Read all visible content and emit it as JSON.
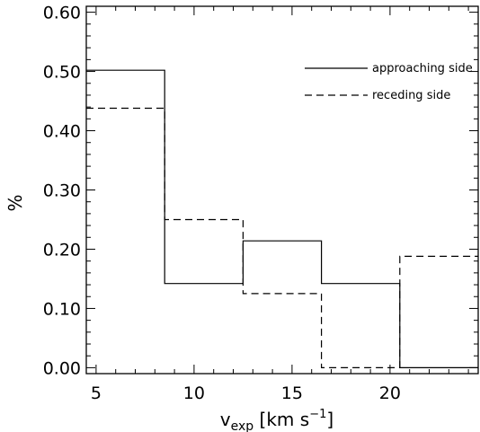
{
  "chart_data": {
    "type": "line",
    "step": true,
    "title": "",
    "xlabel": {
      "base": "v",
      "subscript": "exp",
      "unit_open": " [km s",
      "unit_sup": "−1",
      "unit_close": "]"
    },
    "ylabel": "%",
    "xlim": [
      4.5,
      24.5
    ],
    "ylim": [
      -0.01,
      0.61
    ],
    "xticks": [
      {
        "value": 5,
        "label": "5"
      },
      {
        "value": 10,
        "label": "10"
      },
      {
        "value": 15,
        "label": "15"
      },
      {
        "value": 20,
        "label": "20"
      }
    ],
    "yticks": [
      {
        "value": 0.0,
        "label": "0.00"
      },
      {
        "value": 0.1,
        "label": "0.10"
      },
      {
        "value": 0.2,
        "label": "0.20"
      },
      {
        "value": 0.3,
        "label": "0.30"
      },
      {
        "value": 0.4,
        "label": "0.40"
      },
      {
        "value": 0.5,
        "label": "0.50"
      },
      {
        "value": 0.6,
        "label": "0.60"
      }
    ],
    "grid": false,
    "legend_position": "top-right",
    "series": [
      {
        "name": "approaching side",
        "style": "solid",
        "color": "#000000",
        "bins": [
          {
            "x0": 4.5,
            "x1": 8.5,
            "y": 0.502
          },
          {
            "x0": 8.5,
            "x1": 12.5,
            "y": 0.142
          },
          {
            "x0": 12.5,
            "x1": 16.5,
            "y": 0.214
          },
          {
            "x0": 16.5,
            "x1": 20.5,
            "y": 0.142
          },
          {
            "x0": 20.5,
            "x1": 24.5,
            "y": 0.0
          }
        ]
      },
      {
        "name": "receding side",
        "style": "dashed",
        "color": "#000000",
        "bins": [
          {
            "x0": 4.5,
            "x1": 8.5,
            "y": 0.438
          },
          {
            "x0": 8.5,
            "x1": 12.5,
            "y": 0.25
          },
          {
            "x0": 12.5,
            "x1": 16.5,
            "y": 0.125
          },
          {
            "x0": 16.5,
            "x1": 20.5,
            "y": 0.0
          },
          {
            "x0": 20.5,
            "x1": 24.5,
            "y": 0.188
          }
        ]
      }
    ]
  }
}
